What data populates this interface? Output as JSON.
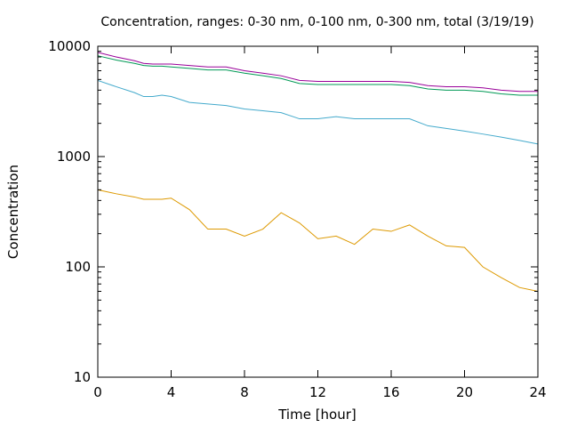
{
  "chart_data": {
    "type": "line",
    "title": "Concentration, ranges: 0-30 nm, 0-100 nm, 0-300 nm, total (3/19/19)",
    "xlabel": "Time [hour]",
    "ylabel": "Concentration",
    "xlim": [
      0,
      24
    ],
    "ylim": [
      10,
      10000
    ],
    "yscale": "log",
    "grid": false,
    "x_ticks": [
      0,
      4,
      8,
      12,
      16,
      20,
      24
    ],
    "x_tick_labels": [
      "0",
      "4",
      "8",
      "12",
      "16",
      "20",
      "24"
    ],
    "y_ticks": [
      10,
      100,
      1000,
      10000
    ],
    "y_tick_labels": [
      "10",
      "100",
      "1000",
      "10000"
    ],
    "x": [
      0,
      1,
      2,
      2.5,
      3,
      3.5,
      4,
      5,
      6,
      7,
      8,
      9,
      10,
      11,
      12,
      13,
      14,
      15,
      16,
      17,
      18,
      19,
      20,
      21,
      22,
      23,
      24
    ],
    "series": [
      {
        "color": "#990099",
        "values": [
          8800,
          8000,
          7400,
          7000,
          6900,
          6900,
          6900,
          6700,
          6500,
          6500,
          6000,
          5700,
          5400,
          4900,
          4800,
          4800,
          4800,
          4800,
          4800,
          4700,
          4400,
          4300,
          4300,
          4200,
          4000,
          3900,
          3900
        ]
      },
      {
        "color": "#009955",
        "values": [
          8200,
          7500,
          7000,
          6700,
          6600,
          6600,
          6500,
          6300,
          6100,
          6100,
          5700,
          5400,
          5100,
          4600,
          4500,
          4500,
          4500,
          4500,
          4500,
          4400,
          4100,
          4000,
          4000,
          3900,
          3700,
          3600,
          3600
        ]
      },
      {
        "color": "#44aacc",
        "values": [
          4900,
          4300,
          3800,
          3500,
          3500,
          3600,
          3500,
          3100,
          3000,
          2900,
          2700,
          2600,
          2500,
          2200,
          2200,
          2300,
          2200,
          2200,
          2200,
          2200,
          1900,
          1800,
          1700,
          1600,
          1500,
          1400,
          1300
        ]
      },
      {
        "color": "#dd9900",
        "values": [
          500,
          460,
          430,
          410,
          410,
          410,
          420,
          330,
          220,
          220,
          190,
          220,
          310,
          250,
          180,
          190,
          160,
          220,
          210,
          240,
          190,
          155,
          150,
          100,
          80,
          65,
          60
        ]
      }
    ]
  }
}
